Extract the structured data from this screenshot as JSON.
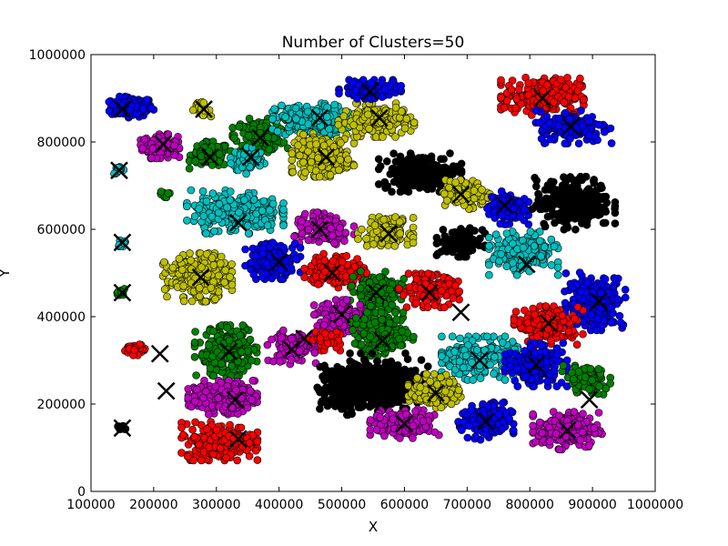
{
  "chart_data": {
    "type": "scatter",
    "title": "Number of Clusters=50",
    "xlabel": "X",
    "ylabel": "Y",
    "xlim": [
      100000,
      1000000
    ],
    "ylim": [
      0,
      1000000
    ],
    "xticks": [
      "100000",
      "200000",
      "300000",
      "400000",
      "500000",
      "600000",
      "700000",
      "800000",
      "900000",
      "1000000"
    ],
    "yticks": [
      "0",
      "200000",
      "400000",
      "600000",
      "800000",
      "1000000"
    ],
    "legend": "none",
    "grid": false,
    "palette": [
      "#0000ff",
      "#008000",
      "#ff0000",
      "#00bfbf",
      "#bf00bf",
      "#bfbf00",
      "#000000"
    ],
    "point_edge_color": "#000000",
    "centroid_marker": "x",
    "clusters": [
      {
        "color": "#0000ff",
        "center": [
          165000,
          880000
        ],
        "spread": [
          33000,
          22000
        ],
        "n": 170
      },
      {
        "color": "#bf00bf",
        "center": [
          210000,
          790000
        ],
        "spread": [
          28000,
          25000
        ],
        "n": 120
      },
      {
        "color": "#bfbf00",
        "center": [
          275000,
          875000
        ],
        "spread": [
          15000,
          15000
        ],
        "n": 25
      },
      {
        "color": "#00bfbf",
        "center": [
          145000,
          735000
        ],
        "spread": [
          8000,
          8000
        ],
        "n": 15
      },
      {
        "color": "#008000",
        "center": [
          290000,
          770000
        ],
        "spread": [
          30000,
          28000
        ],
        "n": 130
      },
      {
        "color": "#008000",
        "center": [
          370000,
          815000
        ],
        "spread": [
          40000,
          35000
        ],
        "n": 150
      },
      {
        "color": "#00bfbf",
        "center": [
          350000,
          760000
        ],
        "spread": [
          25000,
          30000
        ],
        "n": 90
      },
      {
        "color": "#00bfbf",
        "center": [
          450000,
          850000
        ],
        "spread": [
          55000,
          35000
        ],
        "n": 200
      },
      {
        "color": "#bfbf00",
        "center": [
          470000,
          770000
        ],
        "spread": [
          45000,
          45000
        ],
        "n": 200
      },
      {
        "color": "#bfbf00",
        "center": [
          555000,
          850000
        ],
        "spread": [
          55000,
          35000
        ],
        "n": 180
      },
      {
        "color": "#0000ff",
        "center": [
          545000,
          920000
        ],
        "spread": [
          45000,
          20000
        ],
        "n": 120
      },
      {
        "color": "#ff0000",
        "center": [
          820000,
          905000
        ],
        "spread": [
          60000,
          40000
        ],
        "n": 250
      },
      {
        "color": "#0000ff",
        "center": [
          870000,
          835000
        ],
        "spread": [
          55000,
          35000
        ],
        "n": 160
      },
      {
        "color": "#000000",
        "center": [
          625000,
          730000
        ],
        "spread": [
          60000,
          40000
        ],
        "n": 220
      },
      {
        "color": "#bfbf00",
        "center": [
          700000,
          680000
        ],
        "spread": [
          35000,
          30000
        ],
        "n": 110
      },
      {
        "color": "#0000ff",
        "center": [
          765000,
          650000
        ],
        "spread": [
          30000,
          35000
        ],
        "n": 120
      },
      {
        "color": "#000000",
        "center": [
          870000,
          660000
        ],
        "spread": [
          60000,
          55000
        ],
        "n": 260
      },
      {
        "color": "#00bfbf",
        "center": [
          330000,
          640000
        ],
        "spread": [
          70000,
          45000
        ],
        "n": 260
      },
      {
        "color": "#00bfbf",
        "center": [
          150000,
          570000
        ],
        "spread": [
          8000,
          8000
        ],
        "n": 12
      },
      {
        "color": "#008000",
        "center": [
          150000,
          455000
        ],
        "spread": [
          8000,
          8000
        ],
        "n": 12
      },
      {
        "color": "#bf00bf",
        "center": [
          470000,
          600000
        ],
        "spread": [
          45000,
          35000
        ],
        "n": 140
      },
      {
        "color": "#bfbf00",
        "center": [
          570000,
          595000
        ],
        "spread": [
          40000,
          30000
        ],
        "n": 130
      },
      {
        "color": "#000000",
        "center": [
          690000,
          570000
        ],
        "spread": [
          35000,
          30000
        ],
        "n": 110
      },
      {
        "color": "#00bfbf",
        "center": [
          790000,
          545000
        ],
        "spread": [
          50000,
          45000
        ],
        "n": 200
      },
      {
        "color": "#bfbf00",
        "center": [
          270000,
          490000
        ],
        "spread": [
          50000,
          50000
        ],
        "n": 250
      },
      {
        "color": "#0000ff",
        "center": [
          390000,
          530000
        ],
        "spread": [
          40000,
          40000
        ],
        "n": 170
      },
      {
        "color": "#ff0000",
        "center": [
          490000,
          505000
        ],
        "spread": [
          45000,
          35000
        ],
        "n": 160
      },
      {
        "color": "#008000",
        "center": [
          555000,
          460000
        ],
        "spread": [
          40000,
          40000
        ],
        "n": 140
      },
      {
        "color": "#ff0000",
        "center": [
          640000,
          460000
        ],
        "spread": [
          45000,
          35000
        ],
        "n": 140
      },
      {
        "color": "#0000ff",
        "center": [
          905000,
          435000
        ],
        "spread": [
          45000,
          60000
        ],
        "n": 220
      },
      {
        "color": "#ff0000",
        "center": [
          830000,
          380000
        ],
        "spread": [
          50000,
          40000
        ],
        "n": 160
      },
      {
        "color": "#008000",
        "center": [
          315000,
          320000
        ],
        "spread": [
          45000,
          55000
        ],
        "n": 230
      },
      {
        "color": "#bf00bf",
        "center": [
          420000,
          330000
        ],
        "spread": [
          35000,
          35000
        ],
        "n": 110
      },
      {
        "color": "#bf00bf",
        "center": [
          500000,
          400000
        ],
        "spread": [
          40000,
          35000
        ],
        "n": 130
      },
      {
        "color": "#008000",
        "center": [
          565000,
          360000
        ],
        "spread": [
          45000,
          45000
        ],
        "n": 170
      },
      {
        "color": "#000000",
        "center": [
          555000,
          250000
        ],
        "spread": [
          75000,
          60000
        ],
        "n": 300
      },
      {
        "color": "#ff0000",
        "center": [
          170000,
          325000
        ],
        "spread": [
          15000,
          12000
        ],
        "n": 45
      },
      {
        "color": "#00bfbf",
        "center": [
          720000,
          305000
        ],
        "spread": [
          55000,
          45000
        ],
        "n": 220
      },
      {
        "color": "#0000ff",
        "center": [
          810000,
          290000
        ],
        "spread": [
          45000,
          45000
        ],
        "n": 190
      },
      {
        "color": "#008000",
        "center": [
          890000,
          255000
        ],
        "spread": [
          35000,
          30000
        ],
        "n": 90
      },
      {
        "color": "#bf00bf",
        "center": [
          310000,
          215000
        ],
        "spread": [
          50000,
          35000
        ],
        "n": 200
      },
      {
        "color": "#bfbf00",
        "center": [
          650000,
          230000
        ],
        "spread": [
          40000,
          35000
        ],
        "n": 150
      },
      {
        "color": "#bf00bf",
        "center": [
          600000,
          155000
        ],
        "spread": [
          50000,
          30000
        ],
        "n": 150
      },
      {
        "color": "#0000ff",
        "center": [
          730000,
          160000
        ],
        "spread": [
          40000,
          40000
        ],
        "n": 170
      },
      {
        "color": "#bf00bf",
        "center": [
          860000,
          140000
        ],
        "spread": [
          50000,
          40000
        ],
        "n": 200
      },
      {
        "color": "#ff0000",
        "center": [
          305000,
          115000
        ],
        "spread": [
          55000,
          40000
        ],
        "n": 250
      },
      {
        "color": "#000000",
        "center": [
          150000,
          145000
        ],
        "spread": [
          8000,
          6000
        ],
        "n": 12
      },
      {
        "color": "#000000",
        "center": [
          505000,
          230000
        ],
        "spread": [
          40000,
          50000
        ],
        "n": 160
      },
      {
        "color": "#008000",
        "center": [
          215000,
          680000
        ],
        "spread": [
          12000,
          12000
        ],
        "n": 8
      },
      {
        "color": "#ff0000",
        "center": [
          470000,
          350000
        ],
        "spread": [
          25000,
          25000
        ],
        "n": 40
      }
    ],
    "centroids": [
      [
        150000,
        875000
      ],
      [
        215000,
        795000
      ],
      [
        280000,
        875000
      ],
      [
        145000,
        735000
      ],
      [
        290000,
        765000
      ],
      [
        370000,
        810000
      ],
      [
        355000,
        765000
      ],
      [
        465000,
        855000
      ],
      [
        475000,
        765000
      ],
      [
        560000,
        855000
      ],
      [
        545000,
        915000
      ],
      [
        820000,
        900000
      ],
      [
        865000,
        835000
      ],
      [
        615000,
        735000
      ],
      [
        690000,
        680000
      ],
      [
        760000,
        655000
      ],
      [
        880000,
        665000
      ],
      [
        335000,
        615000
      ],
      [
        150000,
        570000
      ],
      [
        150000,
        455000
      ],
      [
        465000,
        600000
      ],
      [
        575000,
        590000
      ],
      [
        690000,
        565000
      ],
      [
        795000,
        520000
      ],
      [
        275000,
        490000
      ],
      [
        400000,
        525000
      ],
      [
        485000,
        500000
      ],
      [
        555000,
        455000
      ],
      [
        640000,
        455000
      ],
      [
        910000,
        435000
      ],
      [
        830000,
        385000
      ],
      [
        320000,
        320000
      ],
      [
        420000,
        325000
      ],
      [
        500000,
        405000
      ],
      [
        565000,
        345000
      ],
      [
        560000,
        250000
      ],
      [
        210000,
        315000
      ],
      [
        720000,
        300000
      ],
      [
        810000,
        290000
      ],
      [
        895000,
        210000
      ],
      [
        330000,
        210000
      ],
      [
        650000,
        225000
      ],
      [
        600000,
        155000
      ],
      [
        730000,
        160000
      ],
      [
        860000,
        140000
      ],
      [
        335000,
        120000
      ],
      [
        150000,
        145000
      ],
      [
        220000,
        230000
      ],
      [
        690000,
        410000
      ],
      [
        440000,
        350000
      ]
    ]
  }
}
